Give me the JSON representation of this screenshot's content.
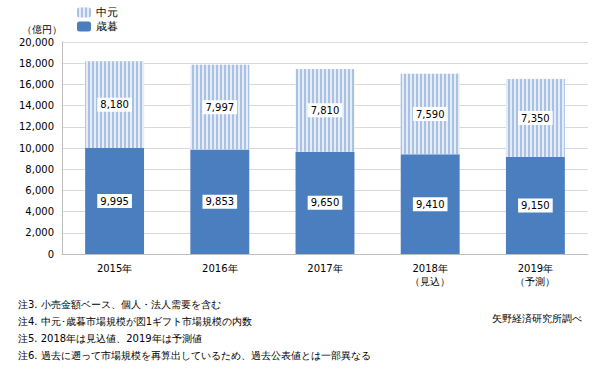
{
  "chart_data": {
    "type": "bar",
    "ylabel": "（億円）",
    "categories": [
      "2015年",
      "2016年",
      "2017年",
      "2018年\n（見込）",
      "2019年\n（予測）"
    ],
    "series": [
      {
        "name": "歳暮",
        "color": "#4a7ebf",
        "values": [
          9995,
          9853,
          9650,
          9410,
          9150
        ],
        "value_labels": [
          "9,995",
          "9,853",
          "9,650",
          "9,410",
          "9,150"
        ]
      },
      {
        "name": "中元",
        "color": "#a9c1e3",
        "values": [
          8180,
          7997,
          7810,
          7590,
          7350
        ],
        "value_labels": [
          "8,180",
          "7,997",
          "7,810",
          "7,590",
          "7,350"
        ]
      }
    ],
    "ylim": [
      0,
      20000
    ],
    "yticks": [
      0,
      {
        "value": 2000,
        "label": "2,000"
      },
      {
        "value": 4000,
        "label": "4,000"
      },
      {
        "value": 6000,
        "label": "6,000"
      },
      {
        "value": 8000,
        "label": "8,000"
      },
      {
        "value": 10000,
        "label": "10,000"
      },
      {
        "value": 12000,
        "label": "12,000"
      },
      {
        "value": 14000,
        "label": "14,000"
      },
      {
        "value": 16000,
        "label": "16,000"
      },
      {
        "value": 18000,
        "label": "18,000"
      },
      {
        "value": 20000,
        "label": "20,000"
      }
    ],
    "stacked": true,
    "data_labels": true,
    "grid": true,
    "legend": "top-left",
    "annotations": [
      "注3. 小売金額ベース、個人・法人需要を含む",
      "注4. 中元･歳暮市場規模が図1ギフト市場規模の内数",
      "注5. 2018年は見込値、2019年は予測値",
      "注6. 過去に遡って市場規模を再算出しているため、過去公表値とは一部異なる",
      "矢野経済研究所調べ"
    ]
  }
}
